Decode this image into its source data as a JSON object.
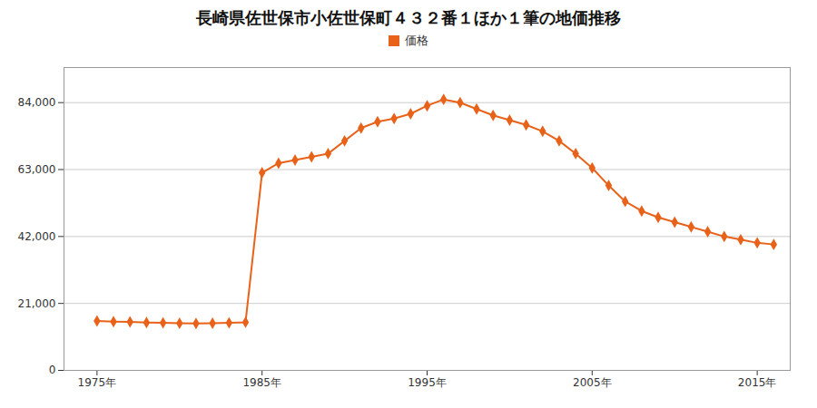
{
  "chart_data": {
    "type": "line",
    "title": "長崎県佐世保市小佐世保町４３２番１ほか１筆の地価推移",
    "x": [
      1975,
      1976,
      1977,
      1978,
      1979,
      1980,
      1981,
      1982,
      1983,
      1984,
      1985,
      1986,
      1987,
      1988,
      1989,
      1990,
      1991,
      1992,
      1993,
      1994,
      1995,
      1996,
      1997,
      1998,
      1999,
      2000,
      2001,
      2002,
      2003,
      2004,
      2005,
      2006,
      2007,
      2008,
      2009,
      2010,
      2011,
      2012,
      2013,
      2014,
      2015,
      2016
    ],
    "series": [
      {
        "name": "価格",
        "color": "#e8621a",
        "marker": "diamond",
        "values": [
          15500,
          15300,
          15200,
          15000,
          14900,
          14800,
          14700,
          14800,
          14900,
          15100,
          62000,
          65000,
          66000,
          67000,
          68000,
          72000,
          76000,
          78000,
          79000,
          80500,
          83000,
          85000,
          84000,
          82000,
          80000,
          78500,
          77000,
          75000,
          72000,
          68000,
          63500,
          58000,
          53000,
          50000,
          48000,
          46500,
          45000,
          43500,
          42000,
          41000,
          40000,
          39500
        ]
      }
    ],
    "xlim": [
      1973,
      2017
    ],
    "xticks": [
      {
        "value": 1975,
        "label": "1975年"
      },
      {
        "value": 1985,
        "label": "1985年"
      },
      {
        "value": 1995,
        "label": "1995年"
      },
      {
        "value": 2005,
        "label": "2005年"
      },
      {
        "value": 2015,
        "label": "2015年"
      }
    ],
    "ylim": [
      0,
      95000
    ],
    "yticks": [
      0,
      {
        "value": 21000,
        "label": "21,000"
      },
      {
        "value": 42000,
        "label": "42,000"
      },
      {
        "value": 63000,
        "label": "63,000"
      },
      {
        "value": 84000,
        "label": "84,000"
      }
    ],
    "grid": "y",
    "legend": "top"
  }
}
